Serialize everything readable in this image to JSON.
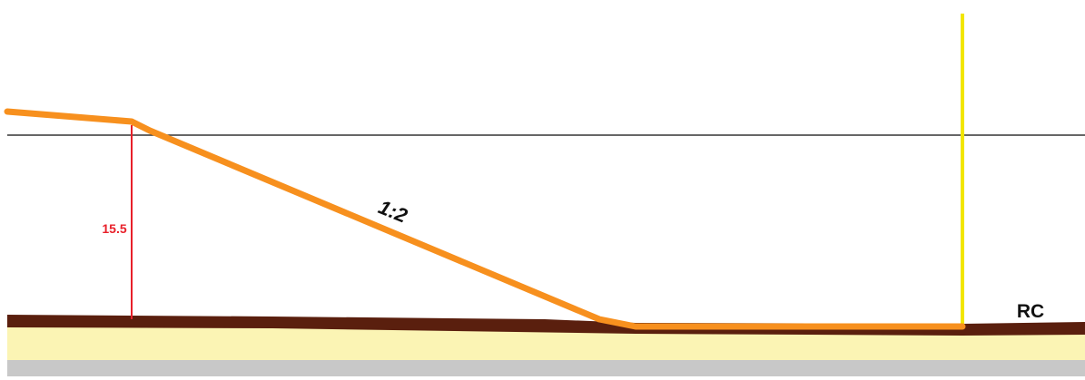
{
  "labels": {
    "height": "15.5",
    "slope": "1:2",
    "marker": "RC"
  }
}
